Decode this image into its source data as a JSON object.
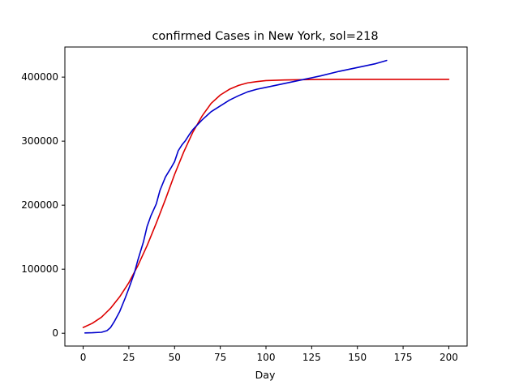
{
  "chart_data": {
    "type": "line",
    "title": "confirmed Cases in New York, sol=218",
    "xlabel": "Day",
    "ylabel": "",
    "xlim": [
      -10,
      210
    ],
    "ylim": [
      -20000,
      447000
    ],
    "x_ticks": [
      0,
      25,
      50,
      75,
      100,
      125,
      150,
      175,
      200
    ],
    "y_ticks": [
      0,
      100000,
      200000,
      300000,
      400000
    ],
    "grid": false,
    "legend": "none",
    "series": [
      {
        "color": "#dd0000",
        "x": [
          0,
          5,
          10,
          15,
          20,
          25,
          30,
          35,
          40,
          45,
          50,
          55,
          60,
          65,
          70,
          75,
          80,
          85,
          90,
          95,
          100,
          110,
          120,
          130,
          140,
          150,
          175,
          200
        ],
        "y": [
          9000,
          15500,
          25000,
          39000,
          57000,
          79000,
          106000,
          137000,
          172000,
          209000,
          248000,
          283000,
          314000,
          339000,
          359000,
          372000,
          381000,
          387000,
          391000,
          393000,
          394500,
          395500,
          396000,
          396300,
          396400,
          396500,
          396500,
          396500
        ]
      },
      {
        "color": "#0000cc",
        "x": [
          1,
          5,
          10,
          13,
          15,
          17,
          20,
          23,
          25,
          28,
          30,
          33,
          35,
          37,
          40,
          42,
          45,
          48,
          50,
          52,
          54,
          56,
          58,
          60,
          65,
          70,
          75,
          80,
          85,
          90,
          95,
          100,
          110,
          120,
          130,
          140,
          150,
          160,
          166
        ],
        "y": [
          500,
          800,
          1500,
          4000,
          9000,
          18000,
          34000,
          55000,
          70000,
          94000,
          115000,
          143000,
          167000,
          183000,
          202000,
          223000,
          244000,
          258000,
          268000,
          285000,
          294000,
          301000,
          310000,
          318000,
          333000,
          346000,
          355000,
          364000,
          371000,
          377000,
          381000,
          384000,
          390000,
          396000,
          402000,
          409000,
          415000,
          421000,
          426000
        ]
      }
    ]
  }
}
